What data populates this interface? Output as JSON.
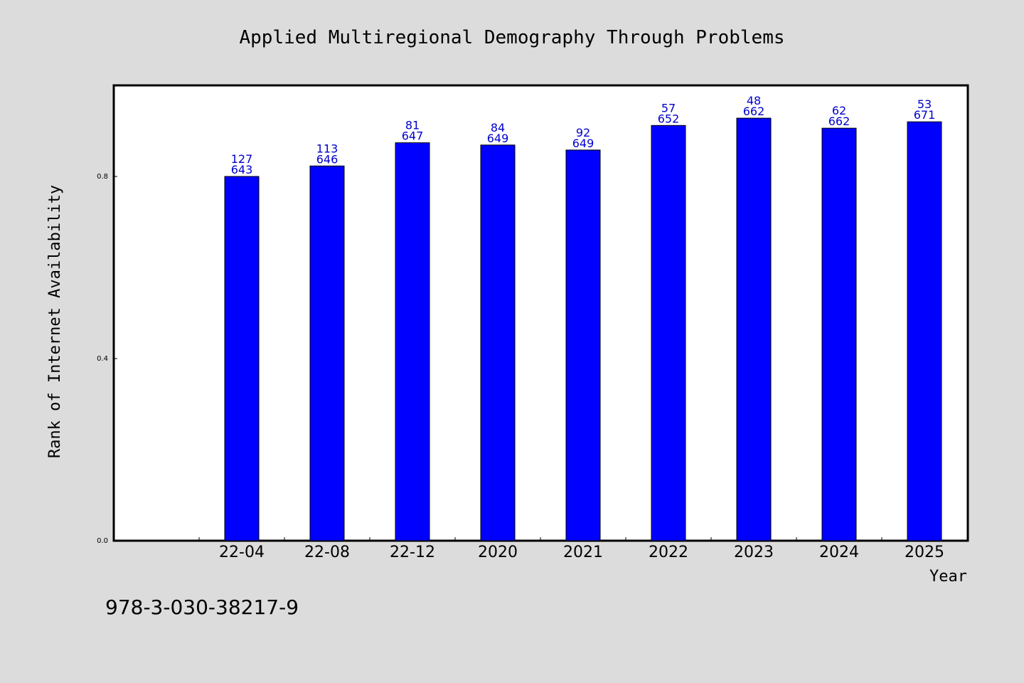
{
  "colors": {
    "background": "#dcdcdc",
    "plot_area": "#ffffff",
    "bar_fill": "#0000ff",
    "bar_stroke": "#000000",
    "label_color": "#0000cc",
    "text": "#000000"
  },
  "footer_code": "978-3-030-38217-9",
  "chart_data": {
    "type": "bar",
    "title": "Applied Multiregional Demography Through Problems",
    "xlabel": "Year",
    "ylabel": "Rank of Internet Availability",
    "categories": [
      "22-04",
      "22-08",
      "22-12",
      "2020",
      "2021",
      "2022",
      "2023",
      "2024",
      "2025"
    ],
    "values": [
      0.8,
      0.823,
      0.874,
      0.869,
      0.858,
      0.912,
      0.928,
      0.906,
      0.92
    ],
    "labels_top": [
      "127",
      "113",
      "81",
      "84",
      "92",
      "57",
      "48",
      "62",
      "53"
    ],
    "labels_bottom": [
      "643",
      "646",
      "647",
      "649",
      "649",
      "652",
      "662",
      "662",
      "671"
    ],
    "yticks": [
      0.0,
      0.4,
      0.8
    ],
    "ytick_labels": [
      "0.0",
      "0.4",
      "0.8"
    ],
    "ylim": [
      0,
      1.0
    ],
    "grid": false,
    "legend": "none"
  }
}
